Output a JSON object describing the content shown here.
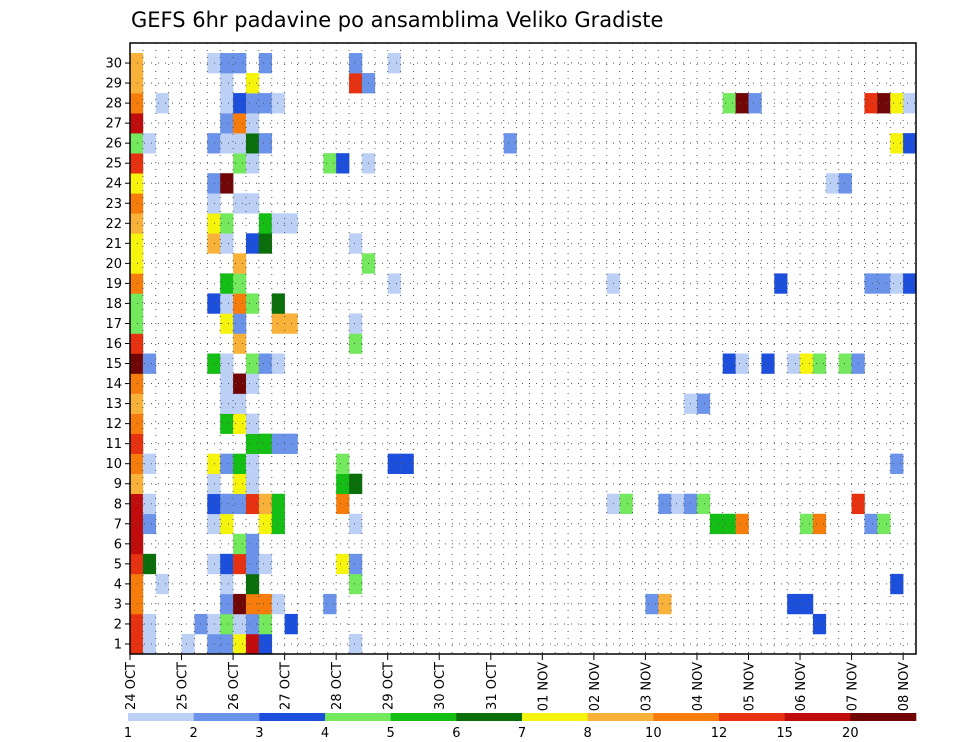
{
  "chart_data": {
    "type": "heatmap",
    "title": "GEFS 6hr padavine po ansamblima Veliko Gradiste",
    "xlabel": "",
    "ylabel": "",
    "x_step_hours": 6,
    "x_ticks": [
      "24 OCT",
      "25 OCT",
      "26 OCT",
      "27 OCT",
      "28 OCT",
      "29 OCT",
      "30 OCT",
      "31 OCT",
      "01 NOV",
      "02 NOV",
      "03 NOV",
      "04 NOV",
      "05 NOV",
      "06 NOV",
      "07 NOV",
      "08 NOV"
    ],
    "y_ticks": [
      "1",
      "2",
      "3",
      "4",
      "5",
      "6",
      "7",
      "8",
      "9",
      "10",
      "11",
      "12",
      "13",
      "14",
      "15",
      "16",
      "17",
      "18",
      "19",
      "20",
      "21",
      "22",
      "23",
      "24",
      "25",
      "26",
      "27",
      "28",
      "29",
      "30"
    ],
    "grid": true,
    "colorbar": {
      "labels": [
        "1",
        "2",
        "3",
        "4",
        "5",
        "6",
        "7",
        "8",
        "10",
        "12",
        "15",
        "20"
      ],
      "colors": [
        "#bcd0f6",
        "#6b93ea",
        "#1c4fdc",
        "#74e95e",
        "#14be14",
        "#0a6e0a",
        "#f6f40c",
        "#f8b23a",
        "#f67d0c",
        "#e63210",
        "#c00c0c",
        "#700606"
      ]
    },
    "cells": [
      [
        1,
        1,
        10
      ],
      [
        1,
        2,
        1
      ],
      [
        1,
        5,
        1
      ],
      [
        1,
        7,
        2
      ],
      [
        1,
        8,
        2
      ],
      [
        1,
        9,
        7
      ],
      [
        1,
        10,
        11
      ],
      [
        1,
        11,
        3
      ],
      [
        1,
        18,
        1
      ],
      [
        2,
        1,
        10
      ],
      [
        2,
        2,
        1
      ],
      [
        2,
        6,
        2
      ],
      [
        2,
        7,
        1
      ],
      [
        2,
        8,
        4
      ],
      [
        2,
        9,
        1
      ],
      [
        2,
        10,
        2
      ],
      [
        2,
        11,
        4
      ],
      [
        2,
        13,
        3
      ],
      [
        2,
        54,
        3
      ],
      [
        3,
        1,
        9
      ],
      [
        3,
        8,
        2
      ],
      [
        3,
        9,
        12
      ],
      [
        3,
        10,
        9
      ],
      [
        3,
        11,
        9
      ],
      [
        3,
        12,
        1
      ],
      [
        3,
        16,
        2
      ],
      [
        3,
        41,
        2
      ],
      [
        3,
        42,
        8
      ],
      [
        3,
        52,
        3
      ],
      [
        3,
        53,
        3
      ],
      [
        4,
        1,
        9
      ],
      [
        4,
        3,
        1
      ],
      [
        4,
        8,
        1
      ],
      [
        4,
        10,
        6
      ],
      [
        4,
        18,
        4
      ],
      [
        4,
        60,
        3
      ],
      [
        5,
        1,
        10
      ],
      [
        5,
        2,
        6
      ],
      [
        5,
        7,
        1
      ],
      [
        5,
        8,
        3
      ],
      [
        5,
        9,
        10
      ],
      [
        5,
        10,
        2
      ],
      [
        5,
        11,
        1
      ],
      [
        5,
        17,
        7
      ],
      [
        5,
        18,
        2
      ],
      [
        6,
        1,
        11
      ],
      [
        6,
        9,
        4
      ],
      [
        6,
        10,
        2
      ],
      [
        7,
        1,
        11
      ],
      [
        7,
        2,
        2
      ],
      [
        7,
        7,
        1
      ],
      [
        7,
        8,
        7
      ],
      [
        7,
        11,
        7
      ],
      [
        7,
        12,
        5
      ],
      [
        7,
        18,
        1
      ],
      [
        7,
        46,
        5
      ],
      [
        7,
        47,
        5
      ],
      [
        7,
        48,
        9
      ],
      [
        7,
        53,
        4
      ],
      [
        7,
        54,
        9
      ],
      [
        7,
        58,
        2
      ],
      [
        7,
        59,
        4
      ],
      [
        8,
        1,
        11
      ],
      [
        8,
        2,
        1
      ],
      [
        8,
        7,
        3
      ],
      [
        8,
        8,
        2
      ],
      [
        8,
        9,
        2
      ],
      [
        8,
        10,
        10
      ],
      [
        8,
        11,
        8
      ],
      [
        8,
        12,
        5
      ],
      [
        8,
        17,
        9
      ],
      [
        8,
        38,
        1
      ],
      [
        8,
        39,
        4
      ],
      [
        8,
        42,
        2
      ],
      [
        8,
        43,
        1
      ],
      [
        8,
        44,
        2
      ],
      [
        8,
        45,
        4
      ],
      [
        8,
        57,
        10
      ],
      [
        9,
        1,
        8
      ],
      [
        9,
        7,
        1
      ],
      [
        9,
        9,
        7
      ],
      [
        9,
        10,
        1
      ],
      [
        9,
        17,
        5
      ],
      [
        9,
        18,
        6
      ],
      [
        10,
        1,
        9
      ],
      [
        10,
        2,
        1
      ],
      [
        10,
        7,
        7
      ],
      [
        10,
        8,
        2
      ],
      [
        10,
        9,
        5
      ],
      [
        10,
        10,
        1
      ],
      [
        10,
        17,
        4
      ],
      [
        10,
        21,
        3
      ],
      [
        10,
        22,
        3
      ],
      [
        10,
        60,
        2
      ],
      [
        11,
        1,
        10
      ],
      [
        11,
        10,
        5
      ],
      [
        11,
        11,
        5
      ],
      [
        11,
        12,
        2
      ],
      [
        11,
        13,
        2
      ],
      [
        12,
        1,
        9
      ],
      [
        12,
        8,
        5
      ],
      [
        12,
        9,
        7
      ],
      [
        12,
        10,
        1
      ],
      [
        13,
        1,
        8
      ],
      [
        13,
        8,
        1
      ],
      [
        13,
        9,
        1
      ],
      [
        13,
        44,
        1
      ],
      [
        13,
        45,
        2
      ],
      [
        14,
        1,
        9
      ],
      [
        14,
        8,
        1
      ],
      [
        14,
        9,
        12
      ],
      [
        14,
        10,
        1
      ],
      [
        15,
        1,
        12
      ],
      [
        15,
        2,
        2
      ],
      [
        15,
        7,
        5
      ],
      [
        15,
        8,
        1
      ],
      [
        15,
        10,
        4
      ],
      [
        15,
        11,
        2
      ],
      [
        15,
        12,
        1
      ],
      [
        15,
        47,
        3
      ],
      [
        15,
        48,
        1
      ],
      [
        15,
        50,
        3
      ],
      [
        15,
        52,
        1
      ],
      [
        15,
        53,
        7
      ],
      [
        15,
        54,
        4
      ],
      [
        15,
        56,
        4
      ],
      [
        15,
        57,
        2
      ],
      [
        16,
        1,
        10
      ],
      [
        16,
        9,
        8
      ],
      [
        16,
        18,
        4
      ],
      [
        17,
        1,
        4
      ],
      [
        17,
        8,
        7
      ],
      [
        17,
        9,
        2
      ],
      [
        17,
        12,
        8
      ],
      [
        17,
        13,
        8
      ],
      [
        17,
        18,
        1
      ],
      [
        18,
        1,
        4
      ],
      [
        18,
        7,
        3
      ],
      [
        18,
        8,
        1
      ],
      [
        18,
        9,
        9
      ],
      [
        18,
        10,
        4
      ],
      [
        18,
        12,
        6
      ],
      [
        19,
        1,
        9
      ],
      [
        19,
        8,
        5
      ],
      [
        19,
        9,
        4
      ],
      [
        19,
        21,
        1
      ],
      [
        19,
        38,
        1
      ],
      [
        19,
        51,
        3
      ],
      [
        19,
        58,
        2
      ],
      [
        19,
        59,
        2
      ],
      [
        19,
        60,
        1
      ],
      [
        19,
        61,
        3
      ],
      [
        20,
        1,
        7
      ],
      [
        20,
        9,
        8
      ],
      [
        20,
        19,
        4
      ],
      [
        21,
        1,
        7
      ],
      [
        21,
        7,
        8
      ],
      [
        21,
        8,
        1
      ],
      [
        21,
        10,
        3
      ],
      [
        21,
        11,
        6
      ],
      [
        21,
        18,
        1
      ],
      [
        22,
        1,
        8
      ],
      [
        22,
        7,
        7
      ],
      [
        22,
        8,
        4
      ],
      [
        22,
        11,
        5
      ],
      [
        22,
        12,
        1
      ],
      [
        22,
        13,
        1
      ],
      [
        23,
        1,
        9
      ],
      [
        23,
        7,
        1
      ],
      [
        23,
        9,
        1
      ],
      [
        23,
        10,
        1
      ],
      [
        24,
        1,
        7
      ],
      [
        24,
        7,
        2
      ],
      [
        24,
        8,
        12
      ],
      [
        24,
        55,
        1
      ],
      [
        24,
        56,
        2
      ],
      [
        25,
        1,
        10
      ],
      [
        25,
        9,
        4
      ],
      [
        25,
        10,
        1
      ],
      [
        25,
        16,
        4
      ],
      [
        25,
        17,
        3
      ],
      [
        25,
        19,
        1
      ],
      [
        26,
        1,
        4
      ],
      [
        26,
        2,
        1
      ],
      [
        26,
        7,
        2
      ],
      [
        26,
        8,
        1
      ],
      [
        26,
        9,
        1
      ],
      [
        26,
        10,
        6
      ],
      [
        26,
        11,
        2
      ],
      [
        26,
        30,
        2
      ],
      [
        26,
        60,
        7
      ],
      [
        26,
        61,
        3
      ],
      [
        27,
        1,
        11
      ],
      [
        27,
        8,
        2
      ],
      [
        27,
        9,
        9
      ],
      [
        27,
        10,
        1
      ],
      [
        28,
        1,
        9
      ],
      [
        28,
        3,
        1
      ],
      [
        28,
        8,
        1
      ],
      [
        28,
        9,
        3
      ],
      [
        28,
        10,
        2
      ],
      [
        28,
        11,
        2
      ],
      [
        28,
        12,
        1
      ],
      [
        28,
        47,
        4
      ],
      [
        28,
        48,
        12
      ],
      [
        28,
        49,
        2
      ],
      [
        28,
        58,
        10
      ],
      [
        28,
        59,
        12
      ],
      [
        28,
        60,
        7
      ],
      [
        28,
        61,
        1
      ],
      [
        29,
        1,
        8
      ],
      [
        29,
        8,
        1
      ],
      [
        29,
        10,
        7
      ],
      [
        29,
        18,
        10
      ],
      [
        29,
        19,
        2
      ],
      [
        30,
        1,
        8
      ],
      [
        30,
        7,
        1
      ],
      [
        30,
        8,
        2
      ],
      [
        30,
        9,
        2
      ],
      [
        30,
        11,
        2
      ],
      [
        30,
        18,
        2
      ],
      [
        30,
        21,
        1
      ]
    ]
  }
}
